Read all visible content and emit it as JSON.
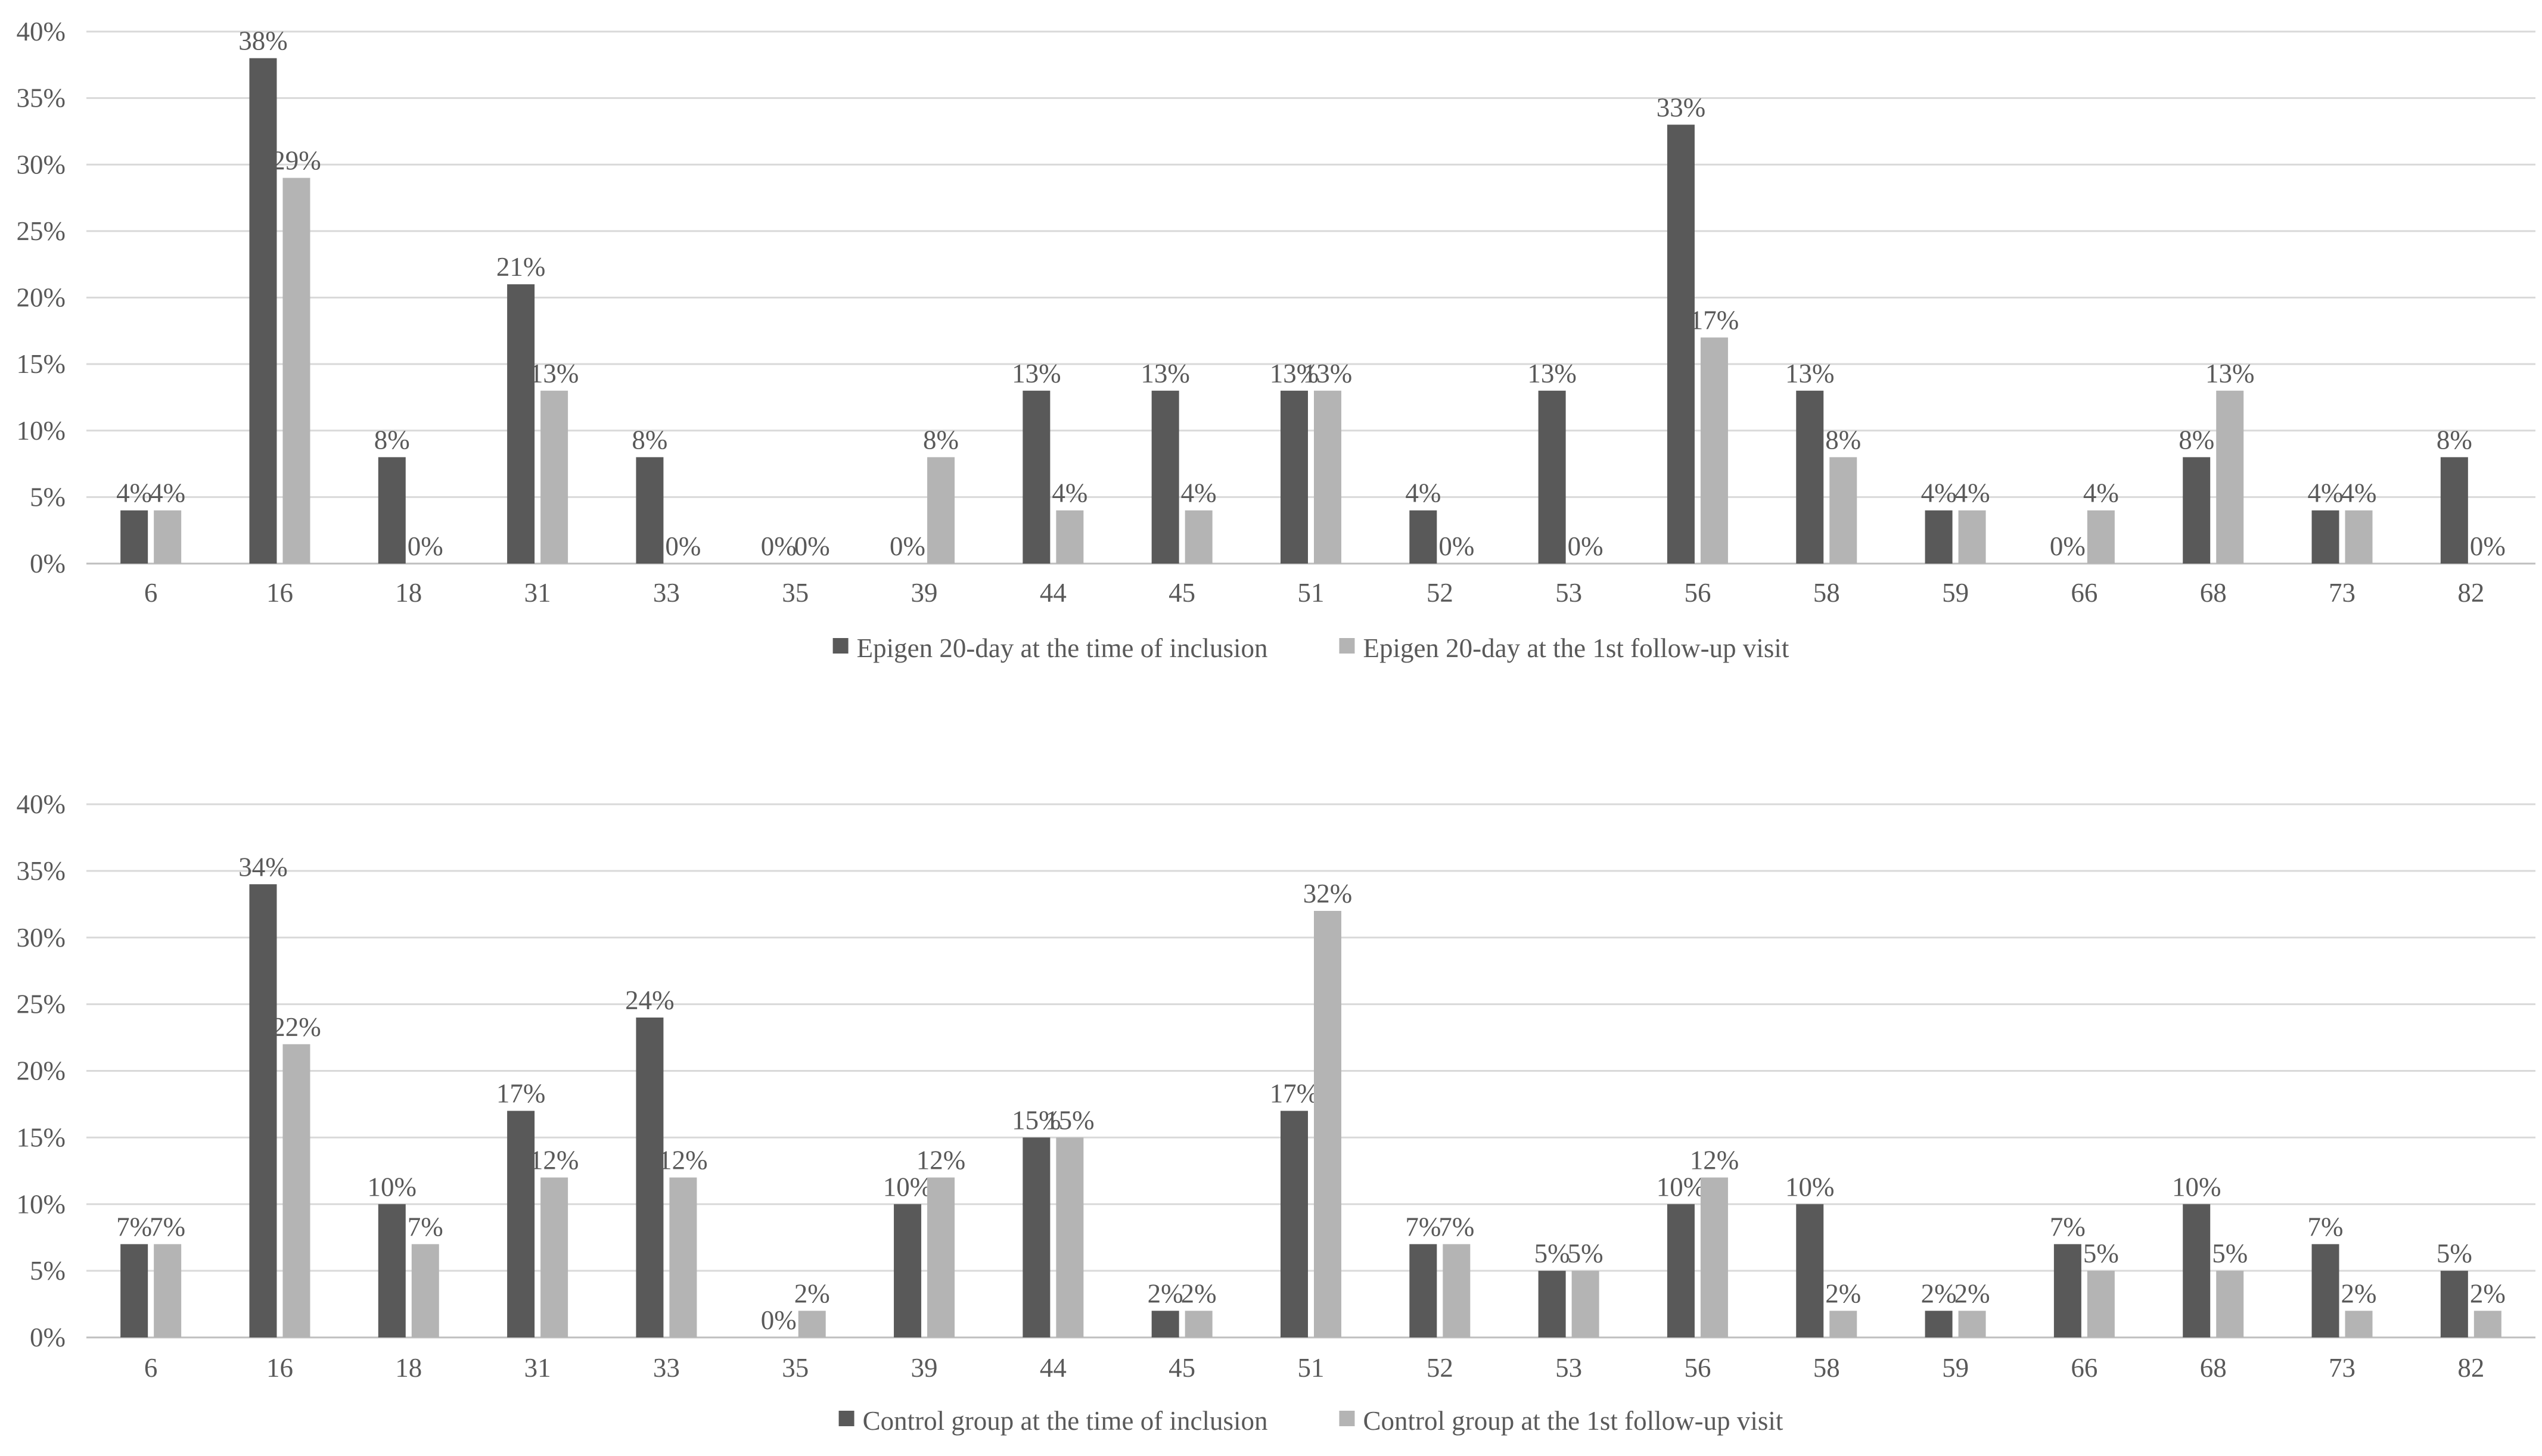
{
  "colors": {
    "series_dark": "#595959",
    "series_light": "#b4b4b4",
    "grid": "#d9d9d9",
    "axis": "#bfbfbf",
    "text": "#595959"
  },
  "chart_data": [
    {
      "type": "bar",
      "title": "",
      "xlabel": "",
      "ylabel": "",
      "ylim": [
        0,
        40
      ],
      "grid": true,
      "legend": "bottom-center",
      "y_ticks": [
        "0%",
        "5%",
        "10%",
        "15%",
        "20%",
        "25%",
        "30%",
        "35%",
        "40%"
      ],
      "categories": [
        "6",
        "16",
        "18",
        "31",
        "33",
        "35",
        "39",
        "44",
        "45",
        "51",
        "52",
        "53",
        "56",
        "58",
        "59",
        "66",
        "68",
        "73",
        "82"
      ],
      "series": [
        {
          "name": "Epigen 20-day at the time of inclusion",
          "values": [
            4,
            38,
            8,
            21,
            8,
            0,
            null,
            13,
            13,
            13,
            4,
            13,
            33,
            13,
            4,
            0,
            8,
            4,
            8
          ],
          "labels": [
            "4%",
            "38%",
            "8%",
            "21%",
            "8%",
            "0%",
            "0%",
            "13%",
            "13%",
            "13%",
            "4%",
            "13%",
            "33%",
            "13%",
            "4%",
            "0%",
            "8%",
            "4%",
            "8%"
          ]
        },
        {
          "name": "Epigen 20-day at the 1st follow-up visit",
          "values": [
            4,
            29,
            0,
            13,
            0,
            0,
            8,
            4,
            4,
            13,
            0,
            0,
            17,
            8,
            4,
            4,
            13,
            4,
            0
          ],
          "labels": [
            "4%",
            "29%",
            "0%",
            "13%",
            "0%",
            "0%",
            "8%",
            "4%",
            "4%",
            "13%",
            "0%",
            "0%",
            "17%",
            "8%",
            "4%",
            "4%",
            "13%",
            "4%",
            "0%"
          ]
        }
      ]
    },
    {
      "type": "bar",
      "title": "",
      "xlabel": "",
      "ylabel": "",
      "ylim": [
        0,
        40
      ],
      "grid": true,
      "legend": "bottom-center",
      "y_ticks": [
        "0%",
        "5%",
        "10%",
        "15%",
        "20%",
        "25%",
        "30%",
        "35%",
        "40%"
      ],
      "categories": [
        "6",
        "16",
        "18",
        "31",
        "33",
        "35",
        "39",
        "44",
        "45",
        "51",
        "52",
        "53",
        "56",
        "58",
        "59",
        "66",
        "68",
        "73",
        "82"
      ],
      "series": [
        {
          "name": "Control group at the time of inclusion",
          "values": [
            7,
            34,
            10,
            17,
            24,
            0,
            10,
            15,
            2,
            17,
            7,
            5,
            10,
            10,
            2,
            7,
            10,
            7,
            5
          ],
          "labels": [
            "7%",
            "34%",
            "10%",
            "17%",
            "24%",
            "0%",
            "10%",
            "15%",
            "2%",
            "17%",
            "7%",
            "5%",
            "10%",
            "10%",
            "2%",
            "7%",
            "10%",
            "7%",
            "5%"
          ]
        },
        {
          "name": "Control group at the 1st follow-up visit",
          "values": [
            7,
            22,
            7,
            12,
            12,
            2,
            12,
            15,
            2,
            32,
            7,
            5,
            12,
            2,
            2,
            5,
            5,
            2,
            2
          ],
          "labels": [
            "7%",
            "22%",
            "7%",
            "12%",
            "12%",
            "2%",
            "12%",
            "15%",
            "2%",
            "32%",
            "7%",
            "5%",
            "12%",
            "2%",
            "2%",
            "5%",
            "5%",
            "2%",
            "2%"
          ]
        }
      ]
    }
  ]
}
